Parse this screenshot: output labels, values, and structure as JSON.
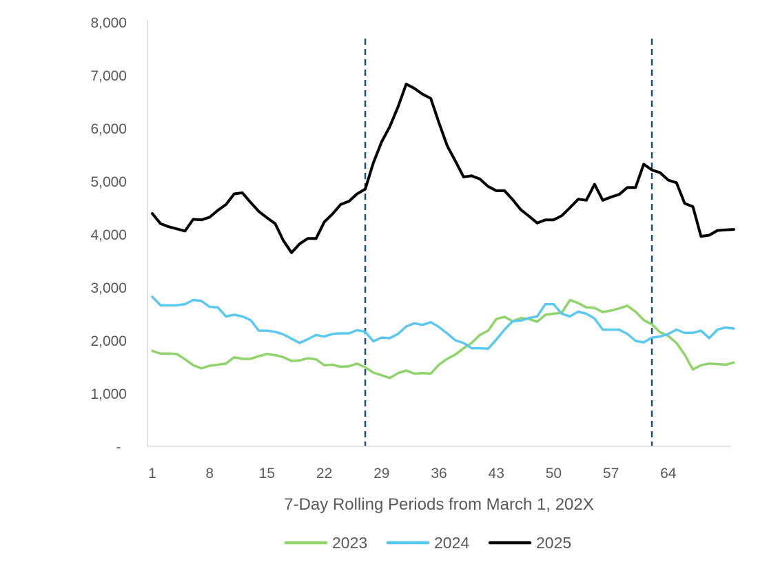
{
  "chart_data": {
    "type": "line",
    "title": "",
    "xlabel": "7-Day Rolling Periods from March 1, 202X",
    "ylabel": "",
    "ylim": [
      0,
      8000
    ],
    "xlim": [
      1,
      71
    ],
    "y_ticks": [
      0,
      1000,
      2000,
      3000,
      4000,
      5000,
      6000,
      7000,
      8000
    ],
    "y_tick_labels": [
      "-",
      "1,000",
      "2,000",
      "3,000",
      "4,000",
      "5,000",
      "6,000",
      "7,000",
      "8,000"
    ],
    "x_ticks": [
      1,
      8,
      15,
      22,
      29,
      36,
      43,
      50,
      57,
      64
    ],
    "x_tick_labels": [
      "1",
      "8",
      "15",
      "22",
      "29",
      "36",
      "43",
      "50",
      "57",
      "64"
    ],
    "grid": false,
    "legend_position": "bottom",
    "reference_lines": [
      {
        "orientation": "vertical",
        "x": 27,
        "style": "dashed",
        "color": "#1F4E66"
      },
      {
        "orientation": "vertical",
        "x": 62,
        "style": "dashed",
        "color": "#1F4E66"
      }
    ],
    "series": [
      {
        "name": "2023",
        "color": "#8FD46B",
        "values": [
          1800,
          1750,
          1750,
          1740,
          1640,
          1530,
          1470,
          1520,
          1540,
          1560,
          1680,
          1650,
          1650,
          1700,
          1740,
          1720,
          1680,
          1610,
          1620,
          1660,
          1640,
          1530,
          1540,
          1500,
          1510,
          1560,
          1490,
          1390,
          1340,
          1290,
          1380,
          1430,
          1370,
          1380,
          1370,
          1540,
          1650,
          1730,
          1850,
          1950,
          2100,
          2180,
          2400,
          2440,
          2360,
          2420,
          2400,
          2350,
          2480,
          2500,
          2520,
          2760,
          2700,
          2620,
          2610,
          2530,
          2560,
          2600,
          2650,
          2540,
          2380,
          2300,
          2150,
          2080,
          1950,
          1730,
          1450,
          1530,
          1560,
          1550,
          1540,
          1580
        ]
      },
      {
        "name": "2024",
        "color": "#5BC8F0",
        "values": [
          2820,
          2660,
          2660,
          2660,
          2680,
          2760,
          2740,
          2630,
          2620,
          2450,
          2480,
          2450,
          2380,
          2180,
          2180,
          2160,
          2110,
          2030,
          1950,
          2020,
          2100,
          2070,
          2120,
          2130,
          2130,
          2190,
          2160,
          1980,
          2050,
          2040,
          2120,
          2260,
          2320,
          2290,
          2340,
          2250,
          2130,
          2000,
          1950,
          1850,
          1850,
          1840,
          2010,
          2200,
          2360,
          2370,
          2420,
          2450,
          2680,
          2680,
          2500,
          2450,
          2540,
          2500,
          2410,
          2200,
          2200,
          2200,
          2120,
          1990,
          1960,
          2050,
          2070,
          2120,
          2200,
          2140,
          2140,
          2180,
          2040,
          2200,
          2240,
          2220
        ]
      },
      {
        "name": "2025",
        "color": "#000000",
        "values": [
          4390,
          4200,
          4140,
          4100,
          4060,
          4280,
          4270,
          4320,
          4450,
          4560,
          4760,
          4780,
          4600,
          4430,
          4310,
          4200,
          3880,
          3650,
          3820,
          3920,
          3920,
          4230,
          4380,
          4560,
          4620,
          4760,
          4850,
          5350,
          5740,
          6030,
          6400,
          6830,
          6750,
          6640,
          6560,
          6100,
          5670,
          5380,
          5080,
          5100,
          5040,
          4900,
          4820,
          4820,
          4650,
          4460,
          4340,
          4210,
          4270,
          4270,
          4350,
          4500,
          4660,
          4640,
          4940,
          4640,
          4700,
          4750,
          4880,
          4880,
          5320,
          5210,
          5160,
          5020,
          4970,
          4580,
          4520,
          3960,
          3980,
          4070,
          4080,
          4090
        ]
      }
    ]
  }
}
